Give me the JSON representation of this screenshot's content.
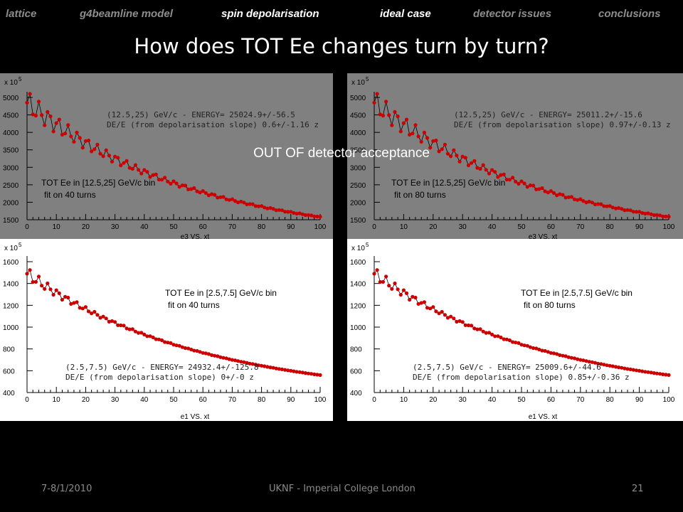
{
  "nav": {
    "items": [
      {
        "label": "lattice",
        "color": "#8c8c8c"
      },
      {
        "label": "g4beamline model",
        "color": "#8c8c8c"
      },
      {
        "label": "spin depolarisation",
        "color": "#ffffff"
      },
      {
        "label": "ideal case",
        "color": "#ffffff"
      },
      {
        "label": "detector issues",
        "color": "#8c8c8c"
      },
      {
        "label": "conclusions",
        "color": "#8c8c8c"
      }
    ]
  },
  "title": "How does TOT Ee changes turn by turn?",
  "overlay": "OUT OF detector acceptance",
  "footer": {
    "date": "7-8/1/2010",
    "center": "UKNF - Imperial College London",
    "page": "21"
  },
  "colors": {
    "marker": "#cc0000",
    "dim_background": "#808080",
    "background": "#ffffff",
    "fit_line": "#000000"
  },
  "chart_data": [
    {
      "type": "scatter",
      "exponent_label": "x 10",
      "exponent_power": "5",
      "xlabel": "e3 VS. xt",
      "ylim": [
        1500,
        5000
      ],
      "xlim": [
        0,
        100
      ],
      "xticks": [
        "0",
        "10",
        "20",
        "30",
        "40",
        "50",
        "60",
        "70",
        "80",
        "90",
        "100"
      ],
      "yticks": [
        "1500",
        "2000",
        "2500",
        "3000",
        "3500",
        "4000",
        "4500",
        "5000"
      ],
      "fit_label": "(12.5,25) GeV/c  - ENERGY= 25024.9+/-56.5",
      "fit_label2": "DE/E (from depolarisation slope)  0.6+/-1.16 z",
      "caption": "TOT Ee in [12.5,25] GeV/c bin",
      "caption2": "fit on 40 turns",
      "dimmed": true,
      "model": {
        "start": 4850,
        "end": 1580,
        "tau": 58,
        "amp": 350,
        "damp": 28,
        "period": 3.3
      },
      "series": [
        {
          "x_start": 0,
          "x_end": 100,
          "step": 1
        }
      ]
    },
    {
      "type": "scatter",
      "exponent_label": "x 10",
      "exponent_power": "5",
      "xlabel": "e3 VS. xt",
      "ylim": [
        1500,
        5000
      ],
      "xlim": [
        0,
        100
      ],
      "xticks": [
        "0",
        "10",
        "20",
        "30",
        "40",
        "50",
        "60",
        "70",
        "80",
        "90",
        "100"
      ],
      "yticks": [
        "1500",
        "2000",
        "2500",
        "3000",
        "3500",
        "4000",
        "4500",
        "5000"
      ],
      "fit_label": "(12.5,25) GeV/c  - ENERGY= 25011.2+/-15.6",
      "fit_label2": "DE/E (from depolarisation slope)  0.97+/-0.13 z",
      "caption": "TOT Ee in [12.5,25] GeV/c bin",
      "caption2": "fit on 80 turns",
      "dimmed": true,
      "model": {
        "start": 4850,
        "end": 1580,
        "tau": 58,
        "amp": 350,
        "damp": 28,
        "period": 3.3
      },
      "series": [
        {
          "x_start": 0,
          "x_end": 100,
          "step": 1
        }
      ]
    },
    {
      "type": "scatter",
      "exponent_label": "x 10",
      "exponent_power": "5",
      "xlabel": "e1 VS. xt",
      "ylim": [
        400,
        1600
      ],
      "xlim": [
        0,
        100
      ],
      "xticks": [
        "0",
        "10",
        "20",
        "30",
        "40",
        "50",
        "60",
        "70",
        "80",
        "90",
        "100"
      ],
      "yticks": [
        "400",
        "600",
        "800",
        "1000",
        "1200",
        "1400",
        "1600"
      ],
      "fit_label": "(2.5,7.5) GeV/c  - ENERGY= 24932.4+/-125.8",
      "fit_label2": "DE/E (from depolarisation slope)  0+/-0 z",
      "caption": "TOT Ee in [2.5,7.5] GeV/c bin",
      "caption2": "fit on 40 turns",
      "dimmed": false,
      "model": {
        "start": 1490,
        "end": 560,
        "tau": 60,
        "amp": 60,
        "damp": 18,
        "period": 3.2
      },
      "series": [
        {
          "x_start": 0,
          "x_end": 100,
          "step": 1
        }
      ]
    },
    {
      "type": "scatter",
      "exponent_label": "x 10",
      "exponent_power": "5",
      "xlabel": "e1 VS. xt",
      "ylim": [
        400,
        1600
      ],
      "xlim": [
        0,
        100
      ],
      "xticks": [
        "0",
        "10",
        "20",
        "30",
        "40",
        "50",
        "60",
        "70",
        "80",
        "90",
        "100"
      ],
      "yticks": [
        "400",
        "600",
        "800",
        "1000",
        "1200",
        "1400",
        "1600"
      ],
      "fit_label": "(2.5,7.5) GeV/c  - ENERGY= 25009.6+/-44.6",
      "fit_label2": "DE/E (from depolarisation slope)  0.85+/-0.36 z",
      "caption": "TOT Ee in [2.5,7.5] GeV/c bin",
      "caption2": "fit on 80 turns",
      "dimmed": false,
      "model": {
        "start": 1490,
        "end": 560,
        "tau": 60,
        "amp": 60,
        "damp": 18,
        "period": 3.2
      },
      "series": [
        {
          "x_start": 0,
          "x_end": 100,
          "step": 1
        }
      ]
    }
  ]
}
